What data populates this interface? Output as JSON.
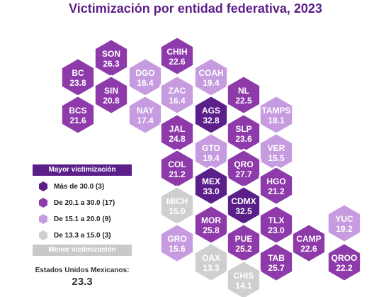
{
  "title": "Victimización por entidad federativa, 2023",
  "legend": {
    "top_label": "Mayor victimización",
    "bottom_label": "Menor victimización",
    "items": [
      {
        "label": "Más de 30.0 (3)",
        "color": "#5b1f8a",
        "class": "c1"
      },
      {
        "label": "De 20.1 a 30.0 (17)",
        "color": "#8e3aab",
        "class": "c2"
      },
      {
        "label": "De 15.1 a 20.0 (9)",
        "color": "#c79be0",
        "class": "c3"
      },
      {
        "label": "De 13.3 a 15.0 (3)",
        "color": "#cfcfcf",
        "class": "c4"
      }
    ]
  },
  "national": {
    "label": "Estados Unidos Mexicanos:",
    "value": "23.3"
  },
  "chart_data": {
    "type": "heatmap",
    "title": "Victimización por entidad federativa, 2023",
    "states": [
      {
        "code": "SON",
        "value": 26.3
      },
      {
        "code": "CHIH",
        "value": 22.6
      },
      {
        "code": "BC",
        "value": 23.8
      },
      {
        "code": "DGO",
        "value": 16.4
      },
      {
        "code": "COAH",
        "value": 19.4
      },
      {
        "code": "SIN",
        "value": 20.8
      },
      {
        "code": "ZAC",
        "value": 16.4
      },
      {
        "code": "NL",
        "value": 22.5
      },
      {
        "code": "BCS",
        "value": 21.6
      },
      {
        "code": "NAY",
        "value": 17.4
      },
      {
        "code": "AGS",
        "value": 32.8
      },
      {
        "code": "TAMPS",
        "value": 18.1
      },
      {
        "code": "JAL",
        "value": 24.8
      },
      {
        "code": "SLP",
        "value": 23.6
      },
      {
        "code": "GTO",
        "value": 19.4
      },
      {
        "code": "VER",
        "value": 15.5
      },
      {
        "code": "COL",
        "value": 21.2
      },
      {
        "code": "QRO",
        "value": 27.7
      },
      {
        "code": "MEX",
        "value": 33.0
      },
      {
        "code": "HGO",
        "value": 21.2
      },
      {
        "code": "MICH",
        "value": 15.0
      },
      {
        "code": "CDMX",
        "value": 32.5
      },
      {
        "code": "MOR",
        "value": 25.8
      },
      {
        "code": "TLX",
        "value": 23.0
      },
      {
        "code": "YUC",
        "value": 19.2
      },
      {
        "code": "GRO",
        "value": 15.6
      },
      {
        "code": "PUE",
        "value": 25.2
      },
      {
        "code": "CAMP",
        "value": 22.6
      },
      {
        "code": "OAX",
        "value": 13.3
      },
      {
        "code": "TAB",
        "value": 25.7
      },
      {
        "code": "QROO",
        "value": 22.2
      },
      {
        "code": "CHIS",
        "value": 14.1
      }
    ],
    "classes": [
      {
        "label": "Más de 30.0 (3)",
        "min": 30.1,
        "max": 100
      },
      {
        "label": "De 20.1 a 30.0 (17)",
        "min": 20.1,
        "max": 30.0
      },
      {
        "label": "De 15.1 a 20.0 (9)",
        "min": 15.1,
        "max": 20.0
      },
      {
        "label": "De 13.3 a 15.0 (3)",
        "min": 13.3,
        "max": 15.0
      }
    ]
  }
}
